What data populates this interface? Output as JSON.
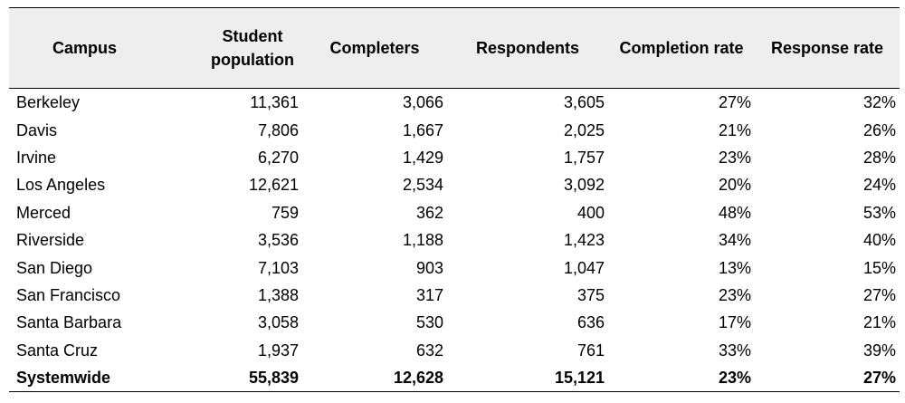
{
  "table": {
    "headers": {
      "campus": "Campus",
      "student_population": "Student population",
      "completers": "Completers",
      "respondents": "Respondents",
      "completion_rate": "Completion rate",
      "response_rate": "Response rate"
    },
    "rows": [
      {
        "campus": "Berkeley",
        "population": "11,361",
        "completers": "3,066",
        "respondents": "3,605",
        "completion_rate": "27%",
        "response_rate": "32%"
      },
      {
        "campus": "Davis",
        "population": "7,806",
        "completers": "1,667",
        "respondents": "2,025",
        "completion_rate": "21%",
        "response_rate": "26%"
      },
      {
        "campus": "Irvine",
        "population": "6,270",
        "completers": "1,429",
        "respondents": "1,757",
        "completion_rate": "23%",
        "response_rate": "28%"
      },
      {
        "campus": "Los Angeles",
        "population": "12,621",
        "completers": "2,534",
        "respondents": "3,092",
        "completion_rate": "20%",
        "response_rate": "24%"
      },
      {
        "campus": "Merced",
        "population": "759",
        "completers": "362",
        "respondents": "400",
        "completion_rate": "48%",
        "response_rate": "53%"
      },
      {
        "campus": "Riverside",
        "population": "3,536",
        "completers": "1,188",
        "respondents": "1,423",
        "completion_rate": "34%",
        "response_rate": "40%"
      },
      {
        "campus": "San Diego",
        "population": "7,103",
        "completers": "903",
        "respondents": "1,047",
        "completion_rate": "13%",
        "response_rate": "15%"
      },
      {
        "campus": "San Francisco",
        "population": "1,388",
        "completers": "317",
        "respondents": "375",
        "completion_rate": "23%",
        "response_rate": "27%"
      },
      {
        "campus": "Santa Barbara",
        "population": "3,058",
        "completers": "530",
        "respondents": "636",
        "completion_rate": "17%",
        "response_rate": "21%"
      },
      {
        "campus": "Santa Cruz",
        "population": "1,937",
        "completers": "632",
        "respondents": "761",
        "completion_rate": "33%",
        "response_rate": "39%"
      }
    ],
    "total": {
      "campus": "Systemwide",
      "population": "55,839",
      "completers": "12,628",
      "respondents": "15,121",
      "completion_rate": "23%",
      "response_rate": "27%"
    }
  }
}
